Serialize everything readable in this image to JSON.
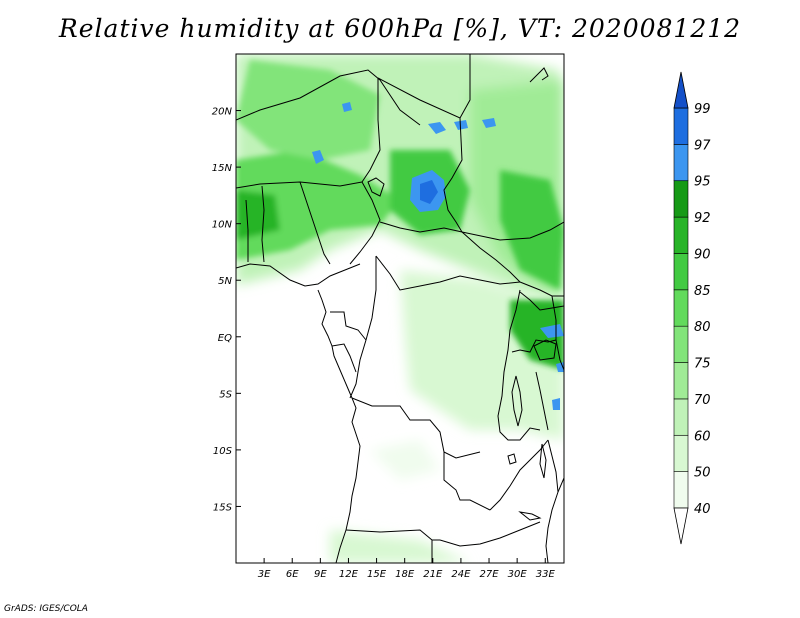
{
  "title": "Relative humidity at 600hPa [%], VT: 2020081212",
  "credit": "GrADS: IGES/COLA",
  "map": {
    "lat_range": [
      -20,
      25
    ],
    "lon_range": [
      0,
      35
    ],
    "lat_ticks": [
      {
        "value": 20,
        "label": "20N"
      },
      {
        "value": 15,
        "label": "15N"
      },
      {
        "value": 10,
        "label": "10N"
      },
      {
        "value": 5,
        "label": "5N"
      },
      {
        "value": 0,
        "label": "EQ"
      },
      {
        "value": -5,
        "label": "5S"
      },
      {
        "value": -10,
        "label": "10S"
      },
      {
        "value": -15,
        "label": "15S"
      }
    ],
    "lon_ticks": [
      {
        "value": 3,
        "label": "3E"
      },
      {
        "value": 6,
        "label": "6E"
      },
      {
        "value": 9,
        "label": "9E"
      },
      {
        "value": 12,
        "label": "12E"
      },
      {
        "value": 15,
        "label": "15E"
      },
      {
        "value": 18,
        "label": "18E"
      },
      {
        "value": 21,
        "label": "21E"
      },
      {
        "value": 24,
        "label": "24E"
      },
      {
        "value": 27,
        "label": "27E"
      },
      {
        "value": 30,
        "label": "30E"
      },
      {
        "value": 33,
        "label": "33E"
      }
    ]
  },
  "colorbar": {
    "levels": [
      "40",
      "50",
      "60",
      "70",
      "75",
      "80",
      "85",
      "90",
      "92",
      "95",
      "97",
      "99"
    ],
    "colors": [
      "#f0fcee",
      "#d8f8d2",
      "#c0f2b8",
      "#a0eb96",
      "#82e47a",
      "#62da5c",
      "#42ca42",
      "#28b428",
      "#169a16",
      "#3c96f0",
      "#1e6ee0",
      "#1450c8"
    ],
    "under_color": "#ffffff",
    "over_color": "#1450c8"
  }
}
